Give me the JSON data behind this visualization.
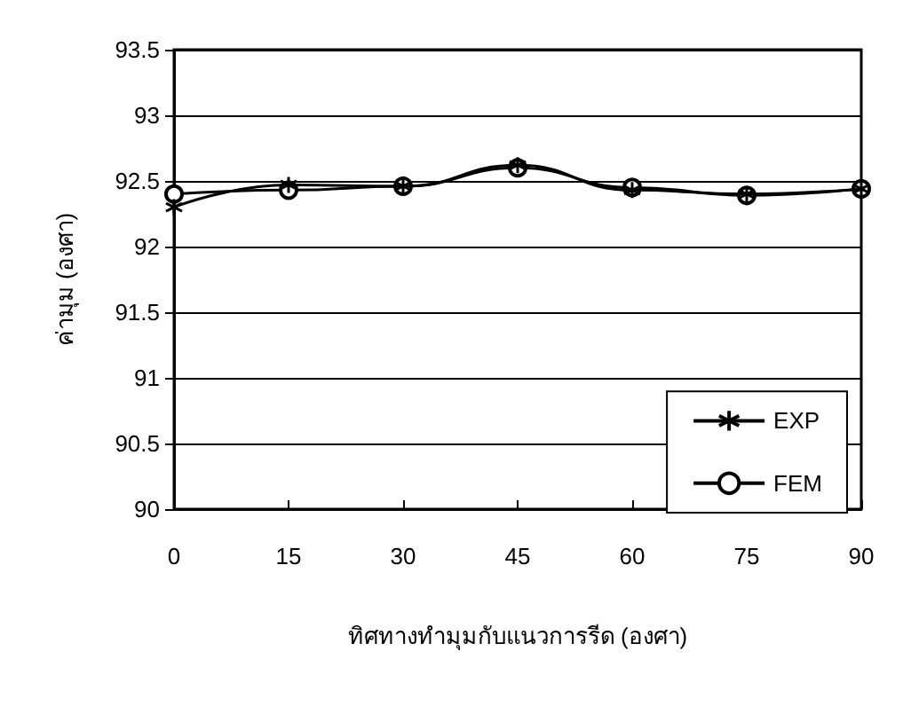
{
  "chart_data": {
    "type": "line",
    "xlabel": "ทิศทางทำมุมกับแนวการรีด (องศา)",
    "ylabel": "ค่ามุม (องศา)",
    "x": [
      0,
      15,
      30,
      45,
      60,
      75,
      90
    ],
    "series": [
      {
        "name": "EXP",
        "color": "#000000",
        "marker": "cross",
        "values": [
          92.3,
          92.47,
          92.46,
          92.62,
          92.43,
          92.4,
          92.44
        ]
      },
      {
        "name": "FEM",
        "color": "#000000",
        "marker": "circle",
        "values": [
          92.4,
          92.43,
          92.46,
          92.6,
          92.45,
          92.39,
          92.44
        ]
      }
    ],
    "xlim": [
      0,
      90
    ],
    "xticks": [
      0,
      15,
      30,
      45,
      60,
      75,
      90
    ],
    "ylim": [
      90,
      93.5
    ],
    "yticks": [
      90,
      90.5,
      91,
      91.5,
      92,
      92.5,
      93,
      93.5
    ],
    "grid": "y",
    "legend": "bottom right",
    "line_style": "solid"
  }
}
